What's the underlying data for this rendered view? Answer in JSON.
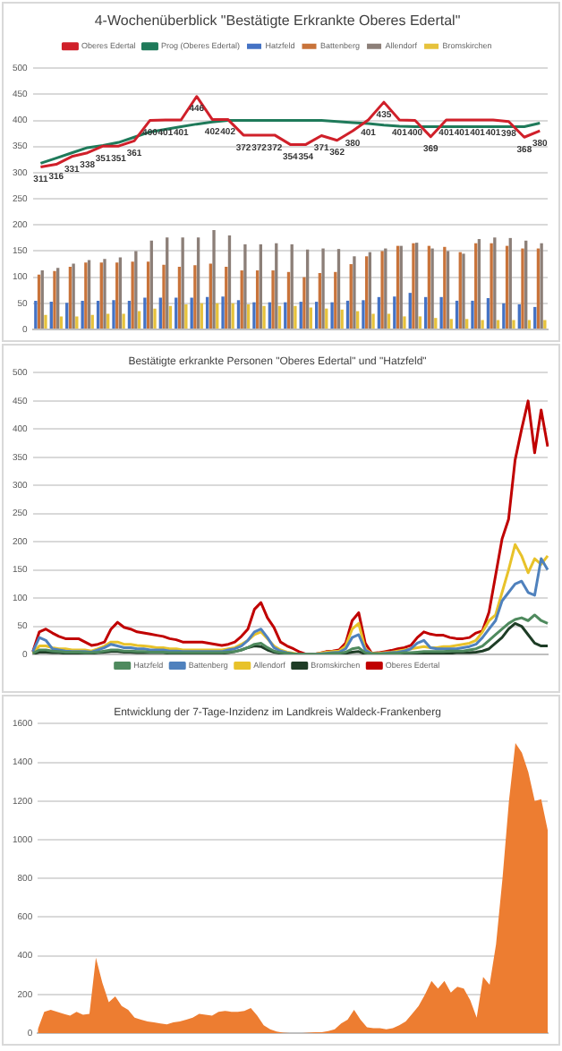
{
  "chart_data": [
    {
      "type": "bar",
      "title": "4-Wochenüberblick \"Bestätigte Erkrankte Oberes Edertal\"",
      "categories": [
        null,
        null,
        null,
        null,
        null,
        null,
        null,
        null,
        null,
        null,
        null,
        null,
        null,
        null,
        null,
        null,
        null,
        null,
        null,
        null,
        null,
        null,
        null,
        null,
        null,
        null,
        null,
        null,
        null,
        null,
        null,
        null,
        null
      ],
      "ylim": [
        0,
        500
      ],
      "yticks": [
        0,
        50,
        100,
        150,
        200,
        250,
        300,
        350,
        400,
        450,
        500
      ],
      "grid": "y",
      "legend": "top",
      "tick_labels": "y",
      "series": [
        {
          "name": "Hatzfeld",
          "color": "#4472c4",
          "values": [
            55,
            53,
            51,
            55,
            55,
            56,
            55,
            61,
            61,
            61,
            61,
            62,
            63,
            56,
            52,
            52,
            52,
            53,
            53,
            52,
            55,
            56,
            62,
            63,
            70,
            62,
            62,
            55,
            55,
            60,
            50,
            48,
            43
          ]
        },
        {
          "name": "Battenberg",
          "color": "#c8733a",
          "values": [
            105,
            112,
            120,
            128,
            128,
            128,
            130,
            130,
            124,
            120,
            123,
            126,
            120,
            113,
            113,
            113,
            110,
            100,
            108,
            110,
            125,
            140,
            150,
            160,
            165,
            160,
            158,
            148,
            165,
            165,
            160,
            155,
            155
          ]
        },
        {
          "name": "Allendorf",
          "color": "#8c7f78",
          "values": [
            113,
            118,
            126,
            133,
            135,
            138,
            150,
            170,
            176,
            176,
            176,
            190,
            180,
            163,
            163,
            165,
            163,
            153,
            155,
            154,
            140,
            148,
            155,
            160,
            166,
            155,
            150,
            145,
            173,
            176,
            175,
            170,
            165
          ]
        },
        {
          "name": "Bromskirchen",
          "color": "#e6c23c",
          "values": [
            28,
            25,
            25,
            28,
            30,
            30,
            35,
            40,
            45,
            48,
            50,
            50,
            50,
            48,
            45,
            45,
            45,
            42,
            40,
            38,
            35,
            30,
            30,
            25,
            25,
            22,
            20,
            20,
            18,
            18,
            18,
            18,
            18
          ]
        },
        {
          "name": "Oberes Edertal",
          "type": "line",
          "color": "#d0202a",
          "values": [
            311,
            316,
            331,
            338,
            351,
            351,
            361,
            400,
            401,
            401,
            446,
            402,
            402,
            372,
            372,
            372,
            354,
            354,
            371,
            362,
            380,
            401,
            435,
            401,
            400,
            369,
            401,
            401,
            401,
            401,
            398,
            368,
            380
          ],
          "value_labels": [
            "311",
            "316",
            "331",
            "338",
            "351",
            "351",
            "361",
            "400",
            "401",
            "401",
            "446",
            "402",
            "402",
            "372",
            "372",
            "372",
            "354",
            "354",
            "371",
            "362",
            "380",
            "401",
            "435",
            "401",
            "400",
            "369",
            "401",
            "401",
            "401",
            "401",
            "398",
            "368",
            "380"
          ]
        },
        {
          "name": "Prog (Oberes Edertal)",
          "type": "line",
          "color": "#1f7a5a",
          "values": [
            318,
            328,
            338,
            348,
            352,
            358,
            368,
            378,
            383,
            388,
            393,
            397,
            400,
            400,
            400,
            400,
            400,
            400,
            400,
            398,
            396,
            394,
            391,
            389,
            388,
            388,
            388,
            388,
            388,
            388,
            388,
            388,
            395
          ]
        }
      ]
    },
    {
      "type": "line",
      "title": "Bestätigte erkrankte Personen \"Oberes Edertal\" und \"Hatzfeld\"",
      "categories": [
        null,
        null,
        null,
        null,
        null,
        null,
        null,
        null,
        null,
        null,
        null,
        null,
        null,
        null,
        null,
        null,
        null,
        null,
        null,
        null,
        null,
        null,
        null,
        null,
        null,
        null,
        null,
        null,
        null,
        null,
        null,
        null,
        null,
        null,
        null,
        null,
        null,
        null,
        null,
        null,
        null,
        null,
        null,
        null,
        null,
        null,
        null,
        null,
        null,
        null,
        null,
        null,
        null,
        null,
        null,
        null,
        null,
        null,
        null,
        null,
        null,
        null,
        null,
        null,
        null,
        null,
        null,
        null,
        null,
        null,
        null,
        null,
        null,
        null,
        null,
        null,
        null,
        null,
        null,
        null
      ],
      "ylim": [
        0,
        500
      ],
      "yticks": [
        0,
        50,
        100,
        150,
        200,
        250,
        300,
        350,
        400,
        450,
        500
      ],
      "grid": "y",
      "legend": "bottom",
      "tick_labels": "y",
      "series": [
        {
          "name": "Hatzfeld",
          "color": "#4f8a5e",
          "values": [
            2,
            8,
            8,
            6,
            5,
            4,
            4,
            4,
            3,
            3,
            4,
            6,
            8,
            8,
            6,
            6,
            5,
            5,
            4,
            4,
            4,
            3,
            3,
            3,
            3,
            3,
            3,
            3,
            3,
            3,
            4,
            5,
            8,
            12,
            18,
            20,
            12,
            6,
            3,
            2,
            1,
            0,
            0,
            0,
            0,
            1,
            2,
            2,
            4,
            10,
            12,
            3,
            1,
            1,
            1,
            2,
            2,
            3,
            3,
            4,
            5,
            5,
            5,
            5,
            6,
            6,
            6,
            8,
            10,
            15,
            25,
            35,
            45,
            55,
            62,
            65,
            60,
            70,
            60,
            55
          ]
        },
        {
          "name": "Battenberg",
          "color": "#4f81bd",
          "values": [
            5,
            30,
            25,
            10,
            8,
            6,
            5,
            5,
            5,
            4,
            8,
            12,
            18,
            15,
            12,
            12,
            10,
            10,
            8,
            8,
            8,
            6,
            6,
            5,
            5,
            5,
            5,
            5,
            5,
            5,
            8,
            10,
            15,
            25,
            40,
            45,
            30,
            12,
            6,
            3,
            1,
            0,
            0,
            0,
            1,
            2,
            3,
            4,
            10,
            30,
            35,
            8,
            1,
            1,
            2,
            3,
            4,
            6,
            10,
            20,
            25,
            12,
            10,
            10,
            10,
            10,
            12,
            14,
            18,
            30,
            45,
            60,
            95,
            110,
            125,
            130,
            110,
            105,
            170,
            150
          ]
        },
        {
          "name": "Allendorf",
          "color": "#e8c22a",
          "values": [
            2,
            15,
            15,
            12,
            10,
            10,
            8,
            8,
            8,
            6,
            10,
            15,
            22,
            22,
            18,
            18,
            16,
            15,
            14,
            12,
            12,
            10,
            10,
            8,
            8,
            8,
            8,
            8,
            8,
            8,
            10,
            12,
            18,
            25,
            35,
            40,
            28,
            15,
            8,
            4,
            2,
            0,
            0,
            0,
            2,
            4,
            5,
            6,
            15,
            45,
            55,
            10,
            2,
            2,
            3,
            4,
            6,
            8,
            10,
            12,
            14,
            12,
            12,
            14,
            14,
            16,
            18,
            20,
            25,
            40,
            60,
            70,
            110,
            150,
            195,
            175,
            145,
            170,
            160,
            175
          ]
        },
        {
          "name": "Bromskirchen",
          "color": "#1e3d26",
          "values": [
            1,
            4,
            4,
            3,
            3,
            2,
            2,
            2,
            2,
            2,
            3,
            4,
            5,
            5,
            4,
            4,
            3,
            3,
            3,
            3,
            3,
            2,
            2,
            2,
            2,
            2,
            2,
            2,
            2,
            2,
            3,
            5,
            8,
            12,
            15,
            14,
            8,
            4,
            2,
            1,
            0,
            0,
            0,
            0,
            0,
            1,
            1,
            1,
            2,
            4,
            5,
            1,
            0,
            0,
            0,
            1,
            1,
            1,
            2,
            2,
            2,
            2,
            2,
            2,
            2,
            3,
            3,
            3,
            4,
            6,
            10,
            20,
            30,
            45,
            55,
            50,
            35,
            20,
            15,
            15
          ]
        },
        {
          "name": "Oberes Edertal",
          "color": "#c00000",
          "values": [
            5,
            40,
            45,
            38,
            32,
            28,
            28,
            28,
            22,
            16,
            18,
            22,
            45,
            57,
            48,
            45,
            40,
            38,
            36,
            34,
            32,
            28,
            26,
            22,
            22,
            22,
            22,
            20,
            18,
            16,
            18,
            22,
            32,
            45,
            80,
            92,
            65,
            48,
            22,
            15,
            10,
            4,
            0,
            0,
            2,
            5,
            6,
            8,
            20,
            60,
            74,
            20,
            2,
            3,
            5,
            7,
            10,
            12,
            16,
            30,
            40,
            36,
            34,
            34,
            30,
            28,
            28,
            30,
            38,
            42,
            75,
            140,
            205,
            240,
            345,
            400,
            450,
            358,
            434,
            369
          ]
        }
      ]
    },
    {
      "type": "area",
      "title": "Entwicklung der 7-Tage-Inzidenz im Landkreis Waldeck-Frankenberg",
      "categories": [
        null,
        null,
        null,
        null,
        null,
        null,
        null,
        null,
        null,
        null,
        null,
        null,
        null,
        null,
        null,
        null,
        null,
        null,
        null,
        null,
        null,
        null,
        null,
        null,
        null,
        null,
        null,
        null,
        null,
        null,
        null,
        null,
        null,
        null,
        null,
        null,
        null,
        null,
        null,
        null,
        null,
        null,
        null,
        null,
        null,
        null,
        null,
        null,
        null,
        null,
        null,
        null,
        null,
        null,
        null,
        null,
        null,
        null,
        null,
        null,
        null,
        null,
        null,
        null,
        null,
        null,
        null,
        null,
        null,
        null,
        null,
        null,
        null,
        null,
        null,
        null,
        null,
        null,
        null,
        null
      ],
      "ylim": [
        0,
        1600
      ],
      "yticks": [
        0,
        200,
        400,
        600,
        800,
        1000,
        1200,
        1400,
        1600
      ],
      "grid": "y",
      "tick_labels": "y",
      "series": [
        {
          "color": "#ed7d31",
          "values": [
            20,
            110,
            120,
            110,
            100,
            90,
            110,
            95,
            100,
            390,
            260,
            160,
            190,
            140,
            120,
            80,
            70,
            60,
            55,
            50,
            45,
            55,
            60,
            70,
            80,
            100,
            95,
            90,
            110,
            115,
            110,
            110,
            115,
            130,
            90,
            40,
            20,
            8,
            2,
            0,
            0,
            0,
            2,
            5,
            5,
            10,
            20,
            50,
            70,
            120,
            70,
            30,
            25,
            25,
            20,
            25,
            40,
            60,
            100,
            140,
            200,
            270,
            230,
            270,
            210,
            240,
            230,
            170,
            80,
            290,
            250,
            460,
            800,
            1200,
            1500,
            1450,
            1350,
            1200,
            1210,
            1050
          ]
        }
      ]
    }
  ]
}
